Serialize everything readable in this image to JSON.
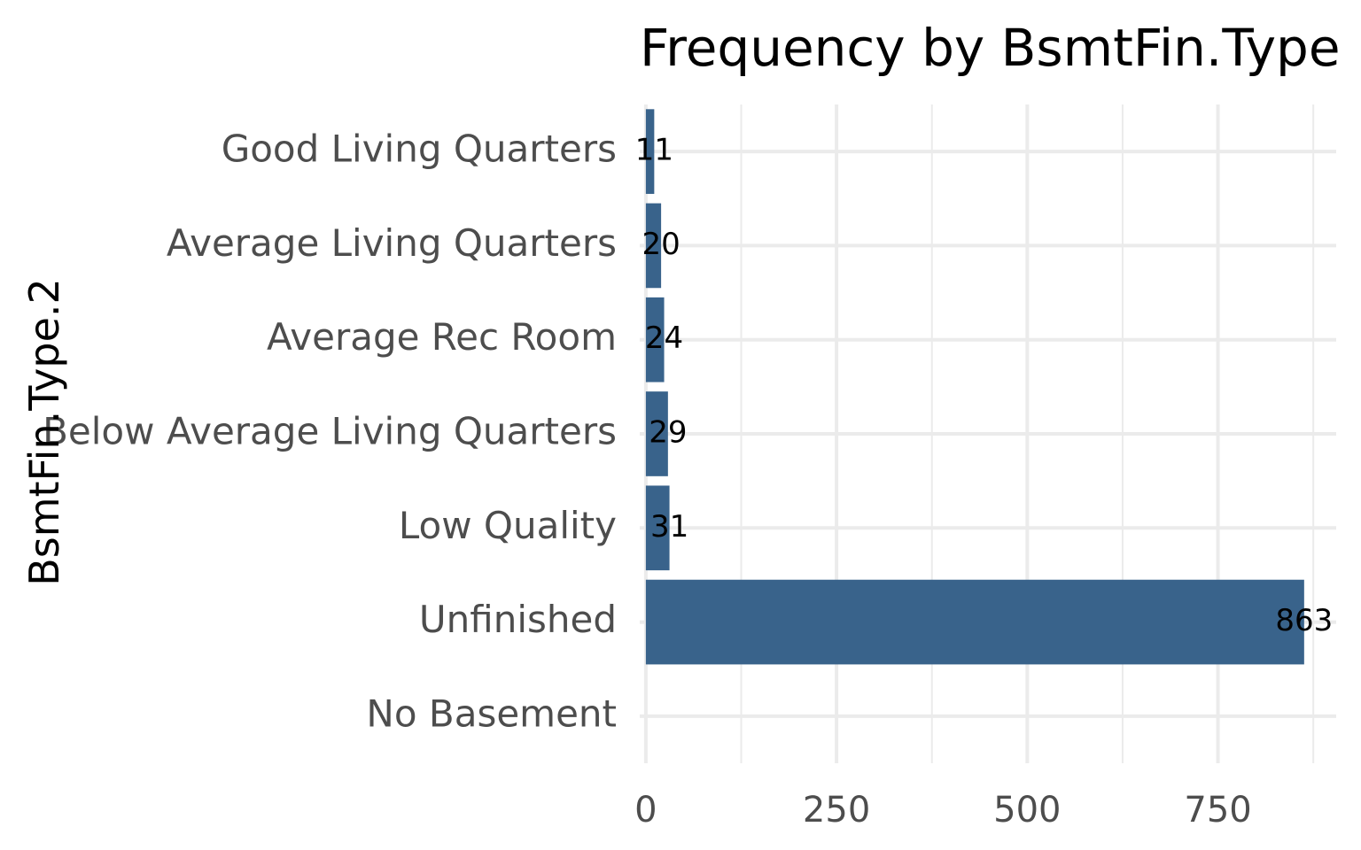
{
  "chart_data": {
    "type": "bar",
    "orientation": "horizontal",
    "title": "Frequency by BsmtFin.Type",
    "xlabel": "",
    "ylabel": "BsmtFin.Type.2",
    "categories": [
      "Good Living Quarters",
      "Average Living Quarters",
      "Average Rec Room",
      "Below Average Living Quarters",
      "Low Quality",
      "Unfinished",
      "No Basement"
    ],
    "values": [
      11,
      20,
      24,
      29,
      31,
      863,
      null
    ],
    "data_labels": [
      "11",
      "20",
      "24",
      "29",
      "31",
      "863",
      ""
    ],
    "xlim": [
      -8,
      905
    ],
    "x_ticks": [
      0,
      250,
      500,
      750
    ],
    "x_tick_labels": [
      "0",
      "250",
      "500",
      "750"
    ],
    "x_minor_ticks": [
      125,
      375,
      625,
      875
    ],
    "bar_color": "#39638b",
    "grid": true,
    "legend": "none"
  }
}
